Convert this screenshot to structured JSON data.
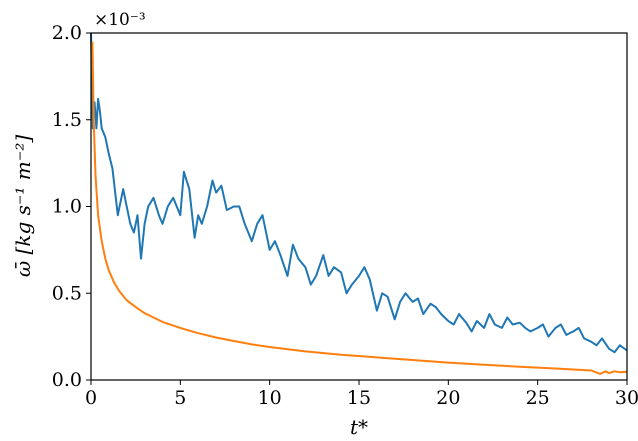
{
  "chart_data": {
    "type": "line",
    "title": "",
    "xlabel": "t*",
    "ylabel": "ω̄ [kg s⁻¹ m⁻²]",
    "y_offset_label": "×10⁻³",
    "xlim": [
      0,
      30
    ],
    "ylim": [
      0.0,
      2.0
    ],
    "x_ticks": [
      0,
      5,
      10,
      15,
      20,
      25,
      30
    ],
    "x_tick_labels": [
      "0",
      "5",
      "10",
      "15",
      "20",
      "25",
      "30"
    ],
    "y_ticks": [
      0.0,
      0.5,
      1.0,
      1.5,
      2.0
    ],
    "y_tick_labels": [
      "0.0",
      "0.5",
      "1.0",
      "1.5",
      "2.0"
    ],
    "grid": false,
    "legend": "none",
    "series": [
      {
        "color": "#1f77b4",
        "x": [
          0.0,
          0.1,
          0.2,
          0.3,
          0.4,
          0.5,
          0.6,
          0.8,
          1.0,
          1.2,
          1.5,
          1.8,
          2.0,
          2.2,
          2.4,
          2.6,
          2.8,
          3.0,
          3.2,
          3.5,
          3.8,
          4.0,
          4.3,
          4.6,
          5.0,
          5.2,
          5.5,
          5.8,
          6.0,
          6.2,
          6.5,
          6.8,
          7.0,
          7.3,
          7.6,
          8.0,
          8.3,
          8.6,
          9.0,
          9.3,
          9.6,
          10.0,
          10.3,
          10.6,
          11.0,
          11.3,
          11.6,
          12.0,
          12.3,
          12.6,
          13.0,
          13.3,
          13.6,
          14.0,
          14.3,
          14.6,
          15.0,
          15.3,
          15.6,
          16.0,
          16.3,
          16.6,
          17.0,
          17.3,
          17.6,
          18.0,
          18.3,
          18.6,
          19.0,
          19.3,
          19.6,
          20.0,
          20.3,
          20.6,
          21.0,
          21.3,
          21.6,
          22.0,
          22.3,
          22.6,
          23.0,
          23.3,
          23.6,
          24.0,
          24.3,
          24.6,
          25.0,
          25.3,
          25.6,
          26.0,
          26.3,
          26.6,
          27.0,
          27.3,
          27.6,
          28.0,
          28.3,
          28.6,
          29.0,
          29.3,
          29.6,
          30.0
        ],
        "y": [
          2.0,
          1.45,
          1.6,
          1.45,
          1.62,
          1.55,
          1.45,
          1.4,
          1.3,
          1.22,
          0.95,
          1.1,
          1.0,
          0.9,
          0.85,
          0.95,
          0.7,
          0.9,
          1.0,
          1.05,
          0.95,
          0.9,
          1.0,
          1.05,
          0.95,
          1.2,
          1.1,
          0.82,
          0.95,
          0.9,
          1.0,
          1.15,
          1.08,
          1.12,
          0.98,
          1.0,
          1.0,
          0.9,
          0.8,
          0.9,
          0.95,
          0.75,
          0.8,
          0.72,
          0.6,
          0.78,
          0.7,
          0.65,
          0.55,
          0.6,
          0.72,
          0.6,
          0.65,
          0.62,
          0.5,
          0.55,
          0.6,
          0.65,
          0.58,
          0.4,
          0.5,
          0.48,
          0.35,
          0.45,
          0.5,
          0.45,
          0.47,
          0.38,
          0.44,
          0.42,
          0.38,
          0.34,
          0.32,
          0.38,
          0.33,
          0.28,
          0.34,
          0.3,
          0.38,
          0.32,
          0.3,
          0.36,
          0.32,
          0.33,
          0.3,
          0.28,
          0.3,
          0.32,
          0.25,
          0.3,
          0.32,
          0.26,
          0.28,
          0.3,
          0.24,
          0.22,
          0.2,
          0.24,
          0.18,
          0.16,
          0.2,
          0.17
        ]
      },
      {
        "color": "#ff7f0e",
        "x": [
          0.08,
          0.15,
          0.25,
          0.4,
          0.6,
          0.8,
          1.0,
          1.3,
          1.6,
          2.0,
          2.5,
          3.0,
          3.5,
          4.0,
          5.0,
          6.0,
          7.0,
          8.0,
          9.0,
          10.0,
          12.0,
          14.0,
          16.0,
          18.0,
          20.0,
          22.0,
          24.0,
          26.0,
          28.0,
          28.5,
          28.8,
          29.0,
          29.3,
          29.6,
          30.0
        ],
        "y": [
          1.95,
          1.5,
          1.18,
          0.95,
          0.8,
          0.7,
          0.63,
          0.56,
          0.51,
          0.46,
          0.42,
          0.385,
          0.36,
          0.335,
          0.3,
          0.27,
          0.245,
          0.225,
          0.205,
          0.19,
          0.165,
          0.145,
          0.13,
          0.115,
          0.1,
          0.088,
          0.076,
          0.066,
          0.055,
          0.035,
          0.05,
          0.04,
          0.05,
          0.045,
          0.048
        ]
      }
    ]
  }
}
